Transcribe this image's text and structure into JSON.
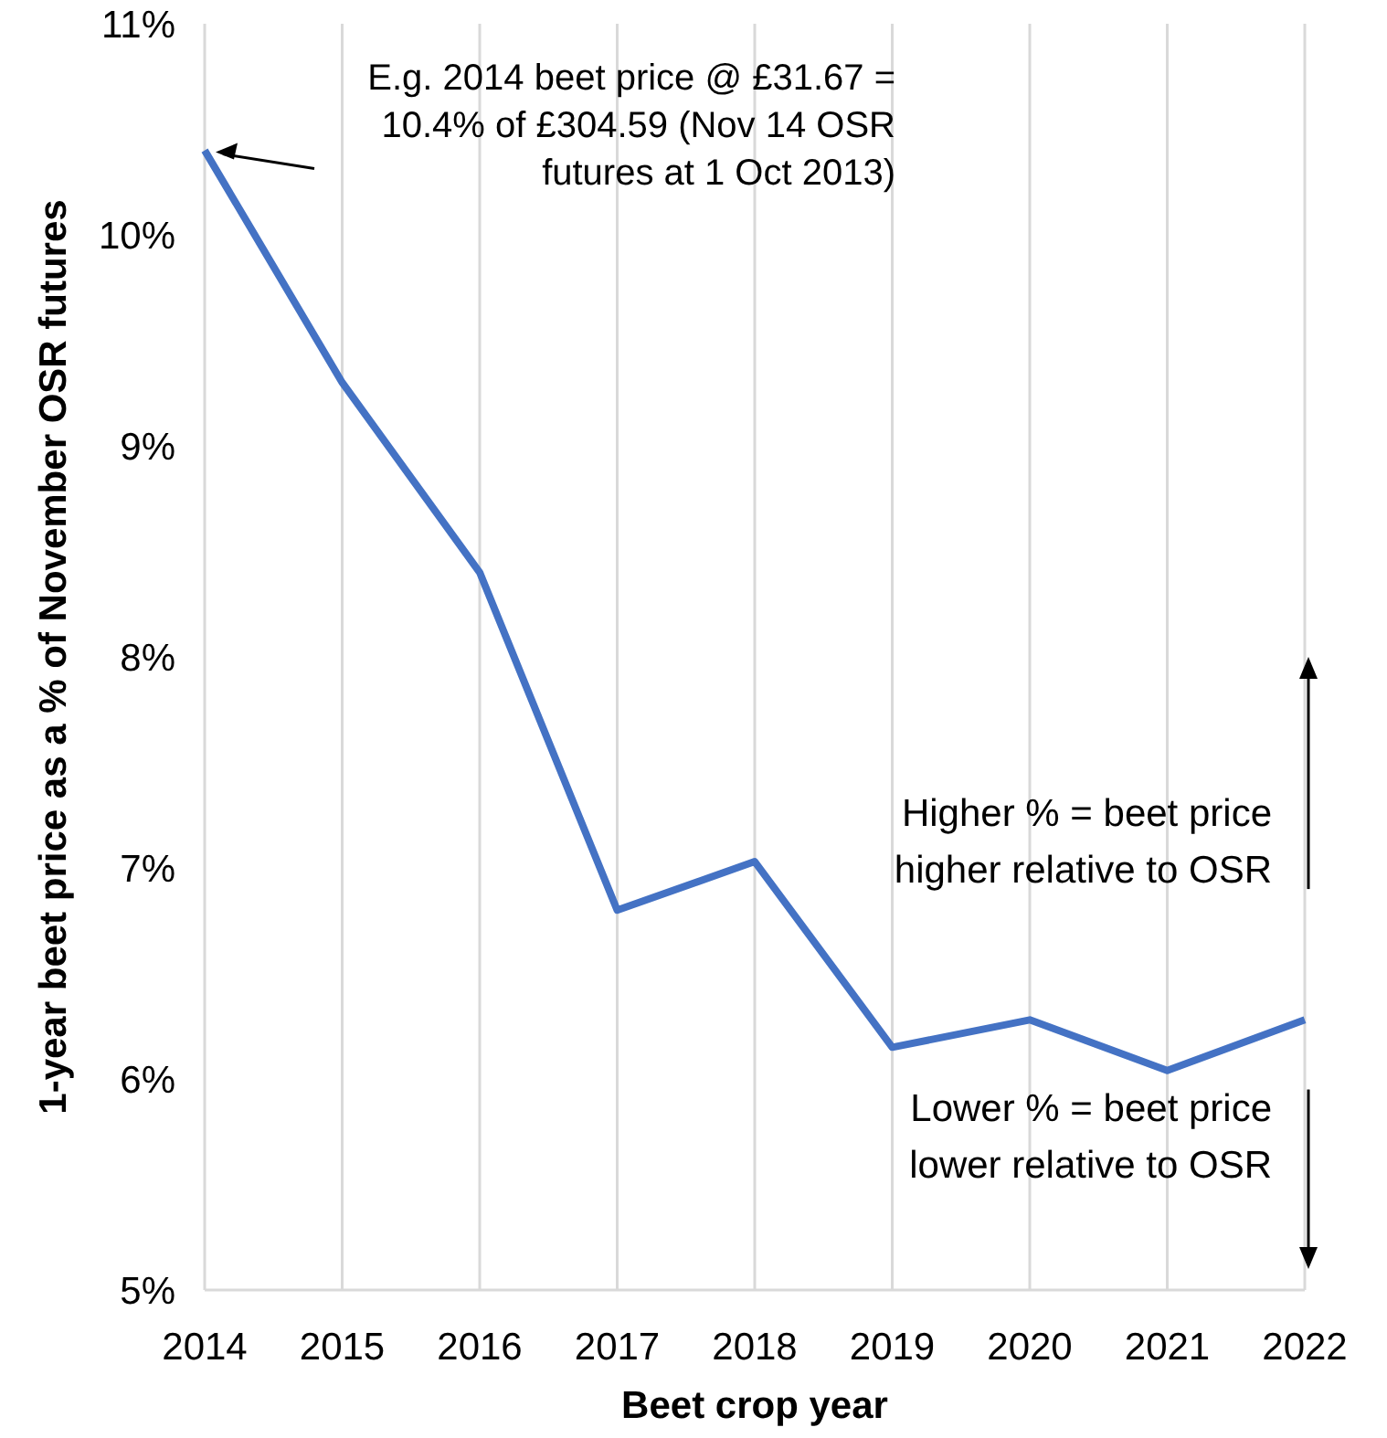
{
  "chart_data": {
    "type": "line",
    "xlabel": "Beet crop year",
    "ylabel": "1-year beet price as a % of November OSR futures",
    "x": [
      2014,
      2015,
      2016,
      2017,
      2018,
      2019,
      2020,
      2021,
      2022
    ],
    "series": [
      {
        "color": "#4472c4",
        "values": [
          10.4,
          9.3,
          8.4,
          6.8,
          7.03,
          6.15,
          6.28,
          6.04,
          6.28
        ]
      }
    ],
    "xlim": [
      2014,
      2022
    ],
    "xticks": [
      2014,
      2015,
      2016,
      2017,
      2018,
      2019,
      2020,
      2021,
      2022
    ],
    "ylim": [
      5,
      11
    ],
    "yticks": [
      {
        "value": 5,
        "label": "5%"
      },
      {
        "value": 6,
        "label": "6%"
      },
      {
        "value": 7,
        "label": "7%"
      },
      {
        "value": 8,
        "label": "8%"
      },
      {
        "value": 9,
        "label": "9%"
      },
      {
        "value": 10,
        "label": "10%"
      },
      {
        "value": 11,
        "label": "11%"
      }
    ],
    "grid": "x",
    "marker": "none",
    "line_style": "solid",
    "annotations": [
      "E.g. 2014 beet price @ £31.67 = 10.4% of £304.59 (Nov 14 OSR futures at 1 Oct 2013)",
      "Higher % = beet price higher relative to OSR",
      "Lower % = beet price lower relative to OSR"
    ]
  }
}
